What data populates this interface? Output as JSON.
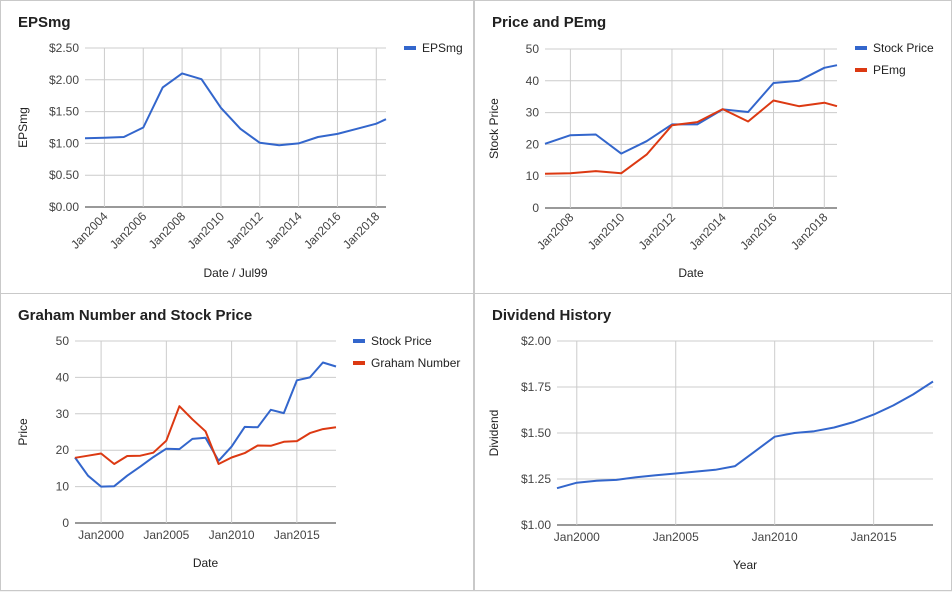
{
  "chart_data": [
    {
      "type": "line",
      "title": "EPSmg",
      "xlabel": "Date / Jul99",
      "ylabel": "EPSmg",
      "ylim": [
        0,
        2.5
      ],
      "yticks": [
        "$0.00",
        "$0.50",
        "$1.00",
        "$1.50",
        "$2.00",
        "$2.50"
      ],
      "xticks": [
        "Jan2004",
        "Jan2006",
        "Jan2008",
        "Jan2010",
        "Jan2012",
        "Jan2014",
        "Jan2016",
        "Jan2018"
      ],
      "grid": true,
      "legend": "top-right",
      "series": [
        {
          "name": "EPSmg",
          "color": "#3366cc",
          "x": [
            2003,
            2004,
            2005,
            2006,
            2007,
            2008,
            2009,
            2010,
            2011,
            2012,
            2013,
            2014,
            2015,
            2016,
            2017,
            2018,
            2018.5
          ],
          "values": [
            1.08,
            1.09,
            1.1,
            1.25,
            1.88,
            2.1,
            2.01,
            1.56,
            1.23,
            1.01,
            0.97,
            1.0,
            1.1,
            1.15,
            1.23,
            1.31,
            1.38
          ]
        }
      ]
    },
    {
      "type": "line",
      "title": "Price and PEmg",
      "xlabel": "Date",
      "ylabel": "Stock Price",
      "ylim": [
        0,
        50
      ],
      "yticks": [
        "0",
        "10",
        "20",
        "30",
        "40",
        "50"
      ],
      "xticks": [
        "Jan2008",
        "Jan2010",
        "Jan2012",
        "Jan2014",
        "Jan2016",
        "Jan2018"
      ],
      "grid": true,
      "legend": "top-right",
      "series": [
        {
          "name": "Stock Price",
          "color": "#3366cc",
          "x": [
            2007,
            2008,
            2009,
            2010,
            2011,
            2012,
            2013,
            2014,
            2015,
            2016,
            2017,
            2018,
            2018.5
          ],
          "values": [
            20.2,
            22.9,
            23.1,
            17.1,
            21.0,
            26.3,
            26.3,
            31.0,
            30.2,
            39.3,
            40.0,
            44.1,
            44.9
          ]
        },
        {
          "name": "PEmg",
          "color": "#dc3912",
          "x": [
            2007,
            2008,
            2009,
            2010,
            2011,
            2012,
            2013,
            2014,
            2015,
            2016,
            2017,
            2018,
            2018.5
          ],
          "values": [
            10.8,
            10.9,
            11.6,
            10.9,
            16.8,
            26.0,
            27.0,
            31.1,
            27.2,
            33.8,
            32.0,
            33.1,
            32.0
          ]
        }
      ]
    },
    {
      "type": "line",
      "title": "Graham Number and Stock Price",
      "xlabel": "Date",
      "ylabel": "Price",
      "ylim": [
        0,
        50
      ],
      "yticks": [
        "0",
        "10",
        "20",
        "30",
        "40",
        "50"
      ],
      "xticks": [
        "Jan2000",
        "Jan2005",
        "Jan2010",
        "Jan2015"
      ],
      "grid": true,
      "legend": "top-right",
      "series": [
        {
          "name": "Stock Price",
          "color": "#3366cc",
          "x": [
            1998,
            1999,
            2000,
            2001,
            2002,
            2003,
            2004,
            2005,
            2006,
            2007,
            2008,
            2009,
            2010,
            2011,
            2012,
            2013,
            2014,
            2015,
            2016,
            2017,
            2018
          ],
          "values": [
            18.0,
            13.0,
            10.0,
            10.1,
            13.0,
            15.5,
            18.1,
            20.4,
            20.3,
            23.1,
            23.4,
            17.1,
            21.0,
            26.4,
            26.3,
            31.1,
            30.2,
            39.2,
            40.0,
            44.1,
            43.0
          ]
        },
        {
          "name": "Graham Number",
          "color": "#dc3912",
          "x": [
            1998,
            1999,
            2000,
            2001,
            2002,
            2003,
            2004,
            2005,
            2006,
            2007,
            2008,
            2009,
            2010,
            2011,
            2012,
            2013,
            2014,
            2015,
            2016,
            2017,
            2018
          ],
          "values": [
            17.9,
            18.5,
            19.1,
            16.2,
            18.4,
            18.5,
            19.3,
            22.6,
            32.1,
            28.5,
            25.2,
            16.2,
            18.0,
            19.2,
            21.3,
            21.2,
            22.3,
            22.5,
            24.7,
            25.8,
            26.3
          ]
        }
      ]
    },
    {
      "type": "line",
      "title": "Dividend History",
      "xlabel": "Year",
      "ylabel": "Dividend",
      "ylim": [
        1.0,
        2.0
      ],
      "yticks": [
        "$1.00",
        "$1.25",
        "$1.50",
        "$1.75",
        "$2.00"
      ],
      "xticks": [
        "Jan2000",
        "Jan2005",
        "Jan2010",
        "Jan2015"
      ],
      "grid": true,
      "legend": "none",
      "series": [
        {
          "color": "#3366cc",
          "x": [
            1999,
            2000,
            2001,
            2002,
            2003,
            2004,
            2005,
            2006,
            2007,
            2008,
            2009,
            2010,
            2011,
            2012,
            2013,
            2014,
            2015,
            2016,
            2017,
            2018
          ],
          "values": [
            1.2,
            1.23,
            1.24,
            1.245,
            1.26,
            1.27,
            1.28,
            1.29,
            1.3,
            1.32,
            1.4,
            1.48,
            1.5,
            1.51,
            1.53,
            1.56,
            1.6,
            1.65,
            1.71,
            1.78
          ]
        }
      ]
    }
  ]
}
